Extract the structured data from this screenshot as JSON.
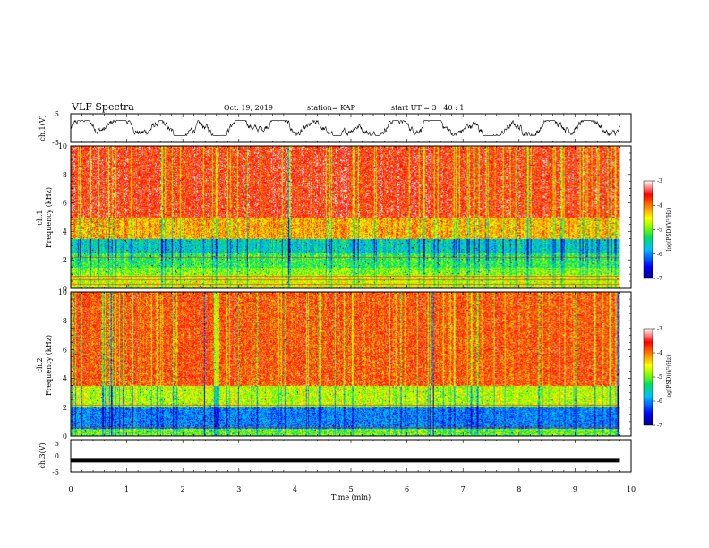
{
  "header": {
    "title": "VLF Spectra",
    "date": "Oct. 19, 2019",
    "station": "station= KAP",
    "start": "start  UT =  3 : 40 : 1"
  },
  "chart_data": [
    {
      "type": "line",
      "name": "ch1-waveform",
      "ylabel": "ch.1(V)",
      "ylim": [
        -5,
        5
      ],
      "yticks": [
        "5",
        "-5"
      ],
      "xlim": [
        0,
        10
      ],
      "note_values": "noisy voltage trace oscillating roughly between -2 and +2 V over 0–9.8 min"
    },
    {
      "type": "heatmap",
      "name": "ch1-spectrogram",
      "ylabel_top": "ch.1",
      "ylabel": "Frequency (kHz)",
      "ylim": [
        0,
        10
      ],
      "yticks": [
        "0",
        "2",
        "4",
        "6",
        "8",
        "10"
      ],
      "xlim": [
        0,
        10
      ],
      "data_end_min": 9.8,
      "bands": [
        {
          "f_low": 0.0,
          "f_high": 1.0,
          "level": -4.6
        },
        {
          "f_low": 1.0,
          "f_high": 1.5,
          "level": -4.9
        },
        {
          "f_low": 1.5,
          "f_high": 2.5,
          "level": -5.2
        },
        {
          "f_low": 2.5,
          "f_high": 3.5,
          "level": -5.6
        },
        {
          "f_low": 3.5,
          "f_high": 5.0,
          "level": -4.2
        },
        {
          "f_low": 5.0,
          "f_high": 10.0,
          "level": -3.6
        }
      ],
      "colorbar": {
        "min": -7,
        "max": -3,
        "ticks": [
          "-3",
          "-4",
          "-5",
          "-6",
          "-7"
        ],
        "label": "log(PSD)(V²/Hz)"
      }
    },
    {
      "type": "heatmap",
      "name": "ch2-spectrogram",
      "ylabel_top": "ch.2",
      "ylabel": "Frequency (kHz)",
      "ylim": [
        0,
        10
      ],
      "yticks": [
        "0",
        "2",
        "4",
        "6",
        "8",
        "10"
      ],
      "xlim": [
        0,
        10
      ],
      "data_end_min": 9.8,
      "bands": [
        {
          "f_low": 0.0,
          "f_high": 0.5,
          "level": -5.0
        },
        {
          "f_low": 0.5,
          "f_high": 2.0,
          "level": -6.0
        },
        {
          "f_low": 2.0,
          "f_high": 3.5,
          "level": -4.7
        },
        {
          "f_low": 3.5,
          "f_high": 10.0,
          "level": -3.8
        }
      ],
      "colorbar": {
        "min": -7,
        "max": -3,
        "ticks": [
          "-3",
          "-4",
          "-5",
          "-6",
          "-7"
        ],
        "label": "log(PSD)(V²/Hz)"
      }
    },
    {
      "type": "line",
      "name": "ch3-waveform",
      "ylabel": "ch.3(V)",
      "ylim": [
        -5,
        5
      ],
      "yticks": [
        "5",
        "0",
        "-5"
      ],
      "xlim": [
        0,
        10
      ],
      "values_constant": -1.5,
      "xlabel": "Time (min)",
      "xticks": [
        "0",
        "1",
        "2",
        "3",
        "4",
        "5",
        "6",
        "7",
        "8",
        "9",
        "10"
      ]
    }
  ],
  "colors": {
    "colormap": [
      "#000080",
      "#0000ff",
      "#00c0ff",
      "#00e060",
      "#80ff00",
      "#ffff00",
      "#ff8000",
      "#ff0000",
      "#ffffff"
    ]
  }
}
